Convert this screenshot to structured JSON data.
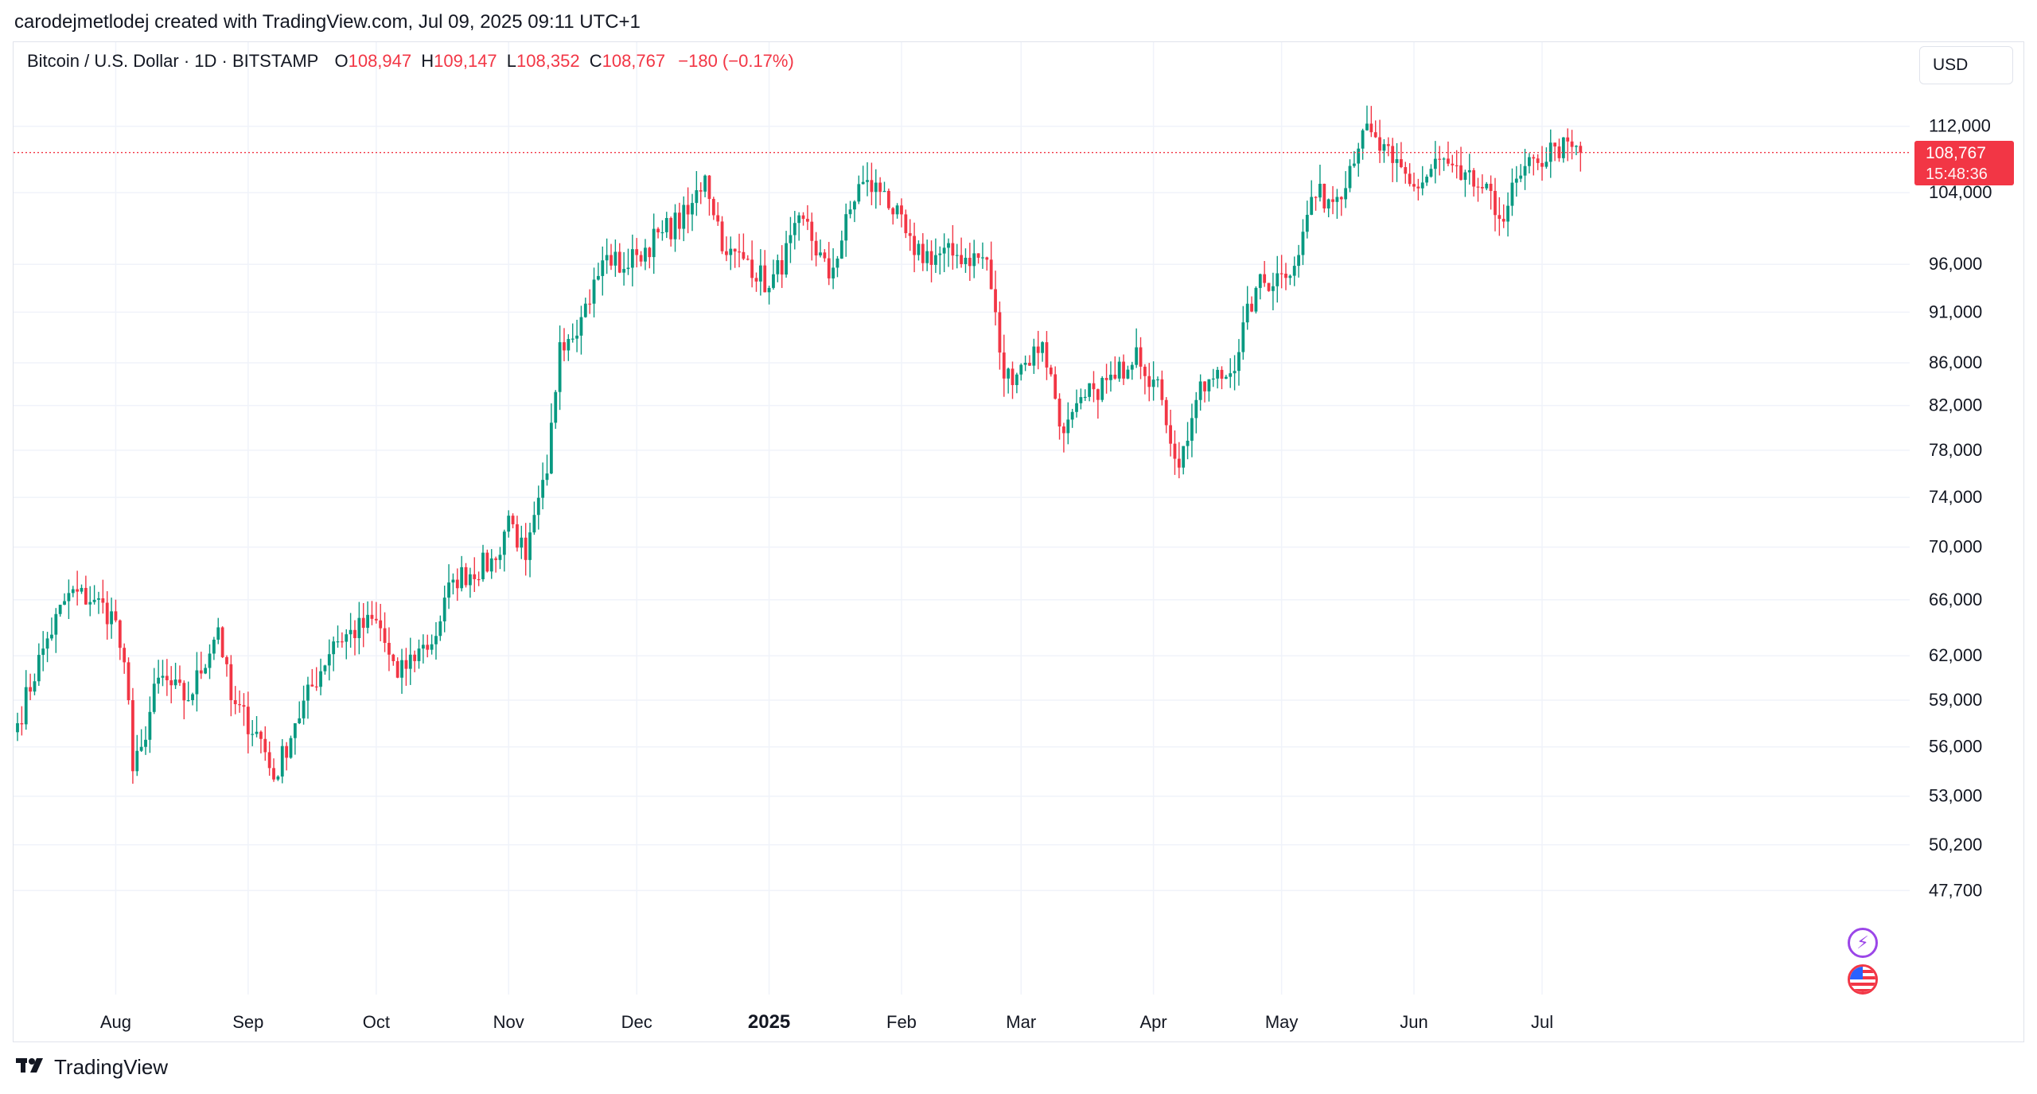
{
  "caption": "carodejmetlodej created with TradingView.com, Jul 09, 2025 09:11 UTC+1",
  "legend": {
    "symbol": "Bitcoin / U.S. Dollar · 1D · BITSTAMP",
    "o_label": "O",
    "o_value": "108,947",
    "h_label": "H",
    "h_value": "109,147",
    "l_label": "L",
    "l_value": "108,352",
    "c_label": "C",
    "c_value": "108,767",
    "change": "−180 (−0.17%)"
  },
  "currency": "USD",
  "last_price": {
    "value": "108,767",
    "countdown": "15:48:36"
  },
  "brand": "TradingView",
  "icons": {
    "logo": "tradingview-logo-icon",
    "bolt": "lightning-badge-icon",
    "flag": "us-flag-badge-icon"
  },
  "colors": {
    "up": "#089981",
    "down": "#f23645",
    "grid": "#f0f3fa",
    "text": "#131722",
    "accent_purple": "#9b46e8"
  },
  "chart_data": {
    "type": "candlestick",
    "title": "Bitcoin / U.S. Dollar · 1D · BITSTAMP",
    "scale": "log",
    "ylim": [
      43000,
      118000
    ],
    "yticks": [
      112000,
      104000,
      96000,
      91000,
      86000,
      82000,
      78000,
      74000,
      70000,
      66000,
      62000,
      59000,
      56000,
      53000,
      50200,
      47700
    ],
    "ytick_labels": [
      "112,000",
      "104,000",
      "96,000",
      "91,000",
      "86,000",
      "82,000",
      "78,000",
      "74,000",
      "70,000",
      "66,000",
      "62,000",
      "59,000",
      "56,000",
      "53,000",
      "50,200",
      "47,700"
    ],
    "x_range_days": [
      0,
      370
    ],
    "xticks": [
      {
        "day": 23,
        "label": "Aug",
        "bold": false
      },
      {
        "day": 54,
        "label": "Sep",
        "bold": false
      },
      {
        "day": 84,
        "label": "Oct",
        "bold": false
      },
      {
        "day": 115,
        "label": "Nov",
        "bold": false
      },
      {
        "day": 145,
        "label": "Dec",
        "bold": false
      },
      {
        "day": 176,
        "label": "2025",
        "bold": true
      },
      {
        "day": 207,
        "label": "Feb",
        "bold": false
      },
      {
        "day": 235,
        "label": "Mar",
        "bold": false
      },
      {
        "day": 266,
        "label": "Apr",
        "bold": false
      },
      {
        "day": 296,
        "label": "May",
        "bold": false
      },
      {
        "day": 327,
        "label": "Jun",
        "bold": false
      },
      {
        "day": 357,
        "label": "Jul",
        "bold": false
      }
    ],
    "last_close": 108767,
    "anchors": [
      {
        "day": 0,
        "close": 57500
      },
      {
        "day": 6,
        "close": 62500
      },
      {
        "day": 12,
        "close": 66500
      },
      {
        "day": 18,
        "close": 66000
      },
      {
        "day": 23,
        "close": 64500
      },
      {
        "day": 26,
        "close": 59000
      },
      {
        "day": 27,
        "close": 54500
      },
      {
        "day": 29,
        "close": 56000
      },
      {
        "day": 33,
        "close": 60500
      },
      {
        "day": 40,
        "close": 59000
      },
      {
        "day": 47,
        "close": 64000
      },
      {
        "day": 50,
        "close": 59000
      },
      {
        "day": 57,
        "close": 56500
      },
      {
        "day": 60,
        "close": 54000
      },
      {
        "day": 65,
        "close": 57500
      },
      {
        "day": 74,
        "close": 63000
      },
      {
        "day": 84,
        "close": 64500
      },
      {
        "day": 89,
        "close": 60500
      },
      {
        "day": 94,
        "close": 62500
      },
      {
        "day": 97,
        "close": 62800
      },
      {
        "day": 102,
        "close": 67500
      },
      {
        "day": 112,
        "close": 69000
      },
      {
        "day": 115,
        "close": 72500
      },
      {
        "day": 119,
        "close": 69000
      },
      {
        "day": 124,
        "close": 76000
      },
      {
        "day": 127,
        "close": 88000
      },
      {
        "day": 132,
        "close": 90500
      },
      {
        "day": 138,
        "close": 97000
      },
      {
        "day": 142,
        "close": 95500
      },
      {
        "day": 145,
        "close": 97000
      },
      {
        "day": 151,
        "close": 99500
      },
      {
        "day": 157,
        "close": 101500
      },
      {
        "day": 161,
        "close": 106000
      },
      {
        "day": 166,
        "close": 97000
      },
      {
        "day": 171,
        "close": 96500
      },
      {
        "day": 176,
        "close": 93500
      },
      {
        "day": 184,
        "close": 101000
      },
      {
        "day": 190,
        "close": 94500
      },
      {
        "day": 197,
        "close": 105000
      },
      {
        "day": 203,
        "close": 104200
      },
      {
        "day": 210,
        "close": 97000
      },
      {
        "day": 220,
        "close": 97000
      },
      {
        "day": 227,
        "close": 96500
      },
      {
        "day": 231,
        "close": 84500
      },
      {
        "day": 236,
        "close": 86000
      },
      {
        "day": 240,
        "close": 88000
      },
      {
        "day": 245,
        "close": 79500
      },
      {
        "day": 252,
        "close": 83500
      },
      {
        "day": 257,
        "close": 84500
      },
      {
        "day": 262,
        "close": 87500
      },
      {
        "day": 268,
        "close": 82500
      },
      {
        "day": 272,
        "close": 76500
      },
      {
        "day": 276,
        "close": 82500
      },
      {
        "day": 280,
        "close": 84500
      },
      {
        "day": 284,
        "close": 85000
      },
      {
        "day": 290,
        "close": 93500
      },
      {
        "day": 296,
        "close": 95000
      },
      {
        "day": 300,
        "close": 97000
      },
      {
        "day": 303,
        "close": 103500
      },
      {
        "day": 309,
        "close": 103500
      },
      {
        "day": 315,
        "close": 111500
      },
      {
        "day": 322,
        "close": 107500
      },
      {
        "day": 328,
        "close": 104500
      },
      {
        "day": 333,
        "close": 108000
      },
      {
        "day": 338,
        "close": 105500
      },
      {
        "day": 343,
        "close": 104500
      },
      {
        "day": 347,
        "close": 101000
      },
      {
        "day": 352,
        "close": 106000
      },
      {
        "day": 356,
        "close": 107500
      },
      {
        "day": 360,
        "close": 109500
      },
      {
        "day": 366,
        "close": 108767
      }
    ]
  }
}
